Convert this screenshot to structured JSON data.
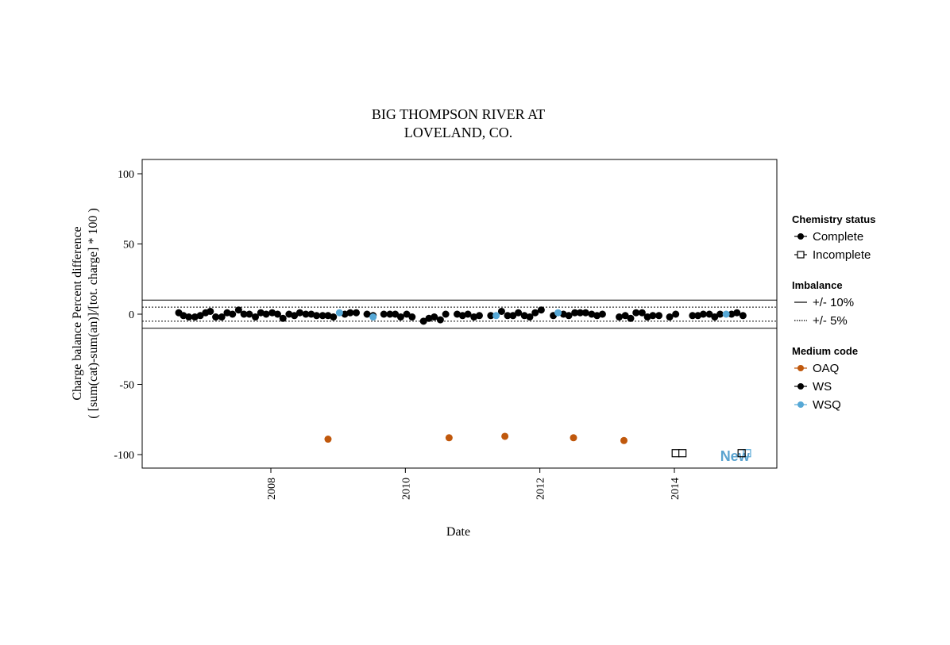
{
  "chart_data": {
    "type": "scatter",
    "title": [
      "BIG THOMPSON RIVER AT",
      "LOVELAND, CO."
    ],
    "xlabel": "Date",
    "ylabel": [
      "Charge balance Percent difference",
      "( [sum(cat)-sum(an)]/[tot. charge] * 100 )"
    ],
    "xlim": [
      2006.2,
      2015.6
    ],
    "ylim": [
      -110,
      110
    ],
    "x_ticks": [
      "2008",
      "2010",
      "2012",
      "2014"
    ],
    "x_tick_values": [
      2008,
      2010,
      2012,
      2014
    ],
    "y_ticks": [
      "100",
      "50",
      "0",
      "-50",
      "-100"
    ],
    "y_tick_values": [
      100,
      50,
      0,
      -50,
      -100
    ],
    "reference_lines": [
      {
        "y": 10,
        "style": "solid"
      },
      {
        "y": -10,
        "style": "solid"
      },
      {
        "y": 5,
        "style": "dotted"
      },
      {
        "y": -5,
        "style": "dotted"
      }
    ],
    "series": [
      {
        "name": "WS",
        "color": "#000000",
        "status": "Complete",
        "points": [
          [
            2006.63,
            1
          ],
          [
            2006.7,
            -1
          ],
          [
            2006.78,
            -2
          ],
          [
            2006.87,
            -2
          ],
          [
            2006.95,
            -1
          ],
          [
            2007.03,
            1
          ],
          [
            2007.1,
            2
          ],
          [
            2007.18,
            -2
          ],
          [
            2007.27,
            -2
          ],
          [
            2007.35,
            1
          ],
          [
            2007.43,
            0
          ],
          [
            2007.52,
            3
          ],
          [
            2007.6,
            0
          ],
          [
            2007.68,
            0
          ],
          [
            2007.77,
            -2
          ],
          [
            2007.85,
            1
          ],
          [
            2007.93,
            0
          ],
          [
            2008.02,
            1
          ],
          [
            2008.1,
            0
          ],
          [
            2008.18,
            -3
          ],
          [
            2008.27,
            0
          ],
          [
            2008.35,
            -1
          ],
          [
            2008.43,
            1
          ],
          [
            2008.52,
            0
          ],
          [
            2008.6,
            0
          ],
          [
            2008.68,
            -1
          ],
          [
            2008.77,
            -1
          ],
          [
            2008.85,
            -1
          ],
          [
            2008.93,
            -2
          ],
          [
            2009.1,
            0
          ],
          [
            2009.18,
            1
          ],
          [
            2009.27,
            1
          ],
          [
            2009.43,
            0
          ],
          [
            2009.52,
            -1
          ],
          [
            2009.68,
            0
          ],
          [
            2009.77,
            0
          ],
          [
            2009.85,
            0
          ],
          [
            2009.93,
            -2
          ],
          [
            2010.02,
            0
          ],
          [
            2010.1,
            -2
          ],
          [
            2010.27,
            -5
          ],
          [
            2010.35,
            -3
          ],
          [
            2010.43,
            -2
          ],
          [
            2010.52,
            -4
          ],
          [
            2010.6,
            0
          ],
          [
            2010.77,
            0
          ],
          [
            2010.85,
            -1
          ],
          [
            2010.93,
            0
          ],
          [
            2011.02,
            -2
          ],
          [
            2011.1,
            -1
          ],
          [
            2011.27,
            -1
          ],
          [
            2011.43,
            2
          ],
          [
            2011.52,
            -1
          ],
          [
            2011.6,
            -1
          ],
          [
            2011.68,
            1
          ],
          [
            2011.77,
            -1
          ],
          [
            2011.85,
            -2
          ],
          [
            2011.93,
            1
          ],
          [
            2012.02,
            3
          ],
          [
            2012.2,
            -1
          ],
          [
            2012.35,
            0
          ],
          [
            2012.43,
            -1
          ],
          [
            2012.52,
            1
          ],
          [
            2012.6,
            1
          ],
          [
            2012.68,
            1
          ],
          [
            2012.77,
            0
          ],
          [
            2012.85,
            -1
          ],
          [
            2012.93,
            0
          ],
          [
            2013.18,
            -2
          ],
          [
            2013.27,
            -1
          ],
          [
            2013.35,
            -3
          ],
          [
            2013.43,
            1
          ],
          [
            2013.52,
            1
          ],
          [
            2013.6,
            -2
          ],
          [
            2013.68,
            -1
          ],
          [
            2013.77,
            -1
          ],
          [
            2013.93,
            -2
          ],
          [
            2014.02,
            0
          ],
          [
            2014.27,
            -1
          ],
          [
            2014.35,
            -1
          ],
          [
            2014.43,
            0
          ],
          [
            2014.52,
            0
          ],
          [
            2014.6,
            -2
          ],
          [
            2014.68,
            0
          ],
          [
            2014.85,
            0
          ],
          [
            2014.93,
            1
          ],
          [
            2015.02,
            -1
          ]
        ]
      },
      {
        "name": "WSQ",
        "color": "#56a8d6",
        "status": "Complete",
        "points": [
          [
            2009.02,
            1
          ],
          [
            2009.52,
            -2
          ],
          [
            2011.35,
            -1
          ],
          [
            2012.27,
            1
          ],
          [
            2014.77,
            0
          ]
        ]
      },
      {
        "name": "OAQ",
        "color": "#c0580c",
        "status": "Complete",
        "points": [
          [
            2008.85,
            -89
          ],
          [
            2010.65,
            -88
          ],
          [
            2011.48,
            -87
          ],
          [
            2012.5,
            -88
          ],
          [
            2013.25,
            -90
          ]
        ]
      },
      {
        "name": "WS",
        "color": "#000000",
        "status": "Incomplete",
        "points": [
          [
            2014.02,
            -99
          ],
          [
            2014.12,
            -99
          ]
        ]
      },
      {
        "name": "WSQ",
        "color": "#56a8d6",
        "status": "Incomplete",
        "points": [
          [
            2015.08,
            -99
          ]
        ]
      }
    ],
    "annotations": [
      {
        "text": "New",
        "x": 2014.9,
        "y": -100,
        "color": "#5aa3cf"
      },
      {
        "marker": "open-square",
        "x": 2015.0,
        "y": -99,
        "color": "#000000"
      }
    ],
    "legend": {
      "placement": "right",
      "groups": [
        {
          "title": "Chemistry status",
          "items": [
            {
              "label": "Complete",
              "symbol": "filled-circle-line",
              "color": "#000000"
            },
            {
              "label": "Incomplete",
              "symbol": "open-square-line",
              "color": "#000000"
            }
          ]
        },
        {
          "title": "Imbalance",
          "items": [
            {
              "label": "+/- 10%",
              "symbol": "solid-line",
              "color": "#000000"
            },
            {
              "label": "+/- 5%",
              "symbol": "dotted-line",
              "color": "#000000"
            }
          ]
        },
        {
          "title": "Medium code",
          "items": [
            {
              "label": "OAQ",
              "symbol": "filled-circle-line",
              "color": "#c0580c"
            },
            {
              "label": "WS",
              "symbol": "filled-circle-line",
              "color": "#000000"
            },
            {
              "label": "WSQ",
              "symbol": "filled-circle-line",
              "color": "#56a8d6"
            }
          ]
        }
      ]
    },
    "grid": false
  }
}
